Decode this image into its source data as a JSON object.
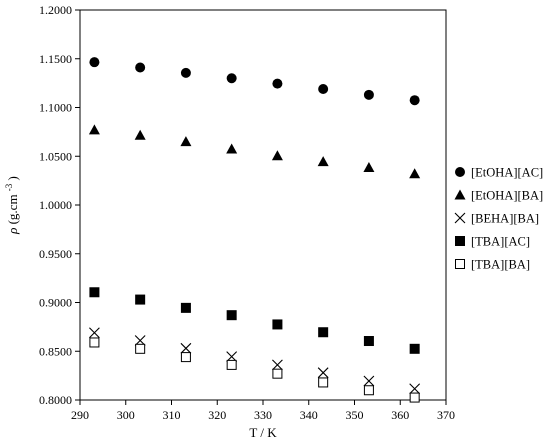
{
  "chart_data": {
    "type": "scatter",
    "xlabel": "T / K",
    "ylabel_symbol": "ρ",
    "ylabel_unit": "(g.cm",
    "ylabel_exp": "-3",
    "ylabel_close": ")",
    "xlim": [
      290,
      370
    ],
    "ylim": [
      0.8,
      1.2
    ],
    "x_ticks": [
      "290",
      "300",
      "310",
      "320",
      "330",
      "340",
      "350",
      "360",
      "370"
    ],
    "y_ticks": [
      "0.8000",
      "0.8500",
      "0.9000",
      "0.9500",
      "1.0000",
      "1.0500",
      "1.1000",
      "1.1500",
      "1.2000"
    ],
    "legend_position": "right",
    "grid": false,
    "x": [
      293.15,
      303.15,
      313.15,
      323.15,
      333.15,
      343.15,
      353.15,
      363.15
    ],
    "series": [
      {
        "name": "[EtOHA][AC]",
        "marker": "circle",
        "values": [
          1.1465,
          1.141,
          1.1355,
          1.13,
          1.1245,
          1.119,
          1.113,
          1.1075
        ]
      },
      {
        "name": "[EtOHA][BA]",
        "marker": "triangle",
        "values": [
          1.077,
          1.0715,
          1.065,
          1.0575,
          1.0505,
          1.0445,
          1.0385,
          1.032
        ]
      },
      {
        "name": "[BEHA][BA]",
        "marker": "cross",
        "values": [
          0.869,
          0.861,
          0.853,
          0.8445,
          0.836,
          0.828,
          0.8195,
          0.8115
        ]
      },
      {
        "name": "[TBA][AC]",
        "marker": "square-filled",
        "values": [
          0.9105,
          0.903,
          0.8945,
          0.887,
          0.8775,
          0.8695,
          0.8605,
          0.8525
        ]
      },
      {
        "name": "[TBA][BA]",
        "marker": "square-open",
        "values": [
          0.859,
          0.8525,
          0.844,
          0.836,
          0.827,
          0.818,
          0.81,
          0.8025
        ]
      }
    ]
  }
}
